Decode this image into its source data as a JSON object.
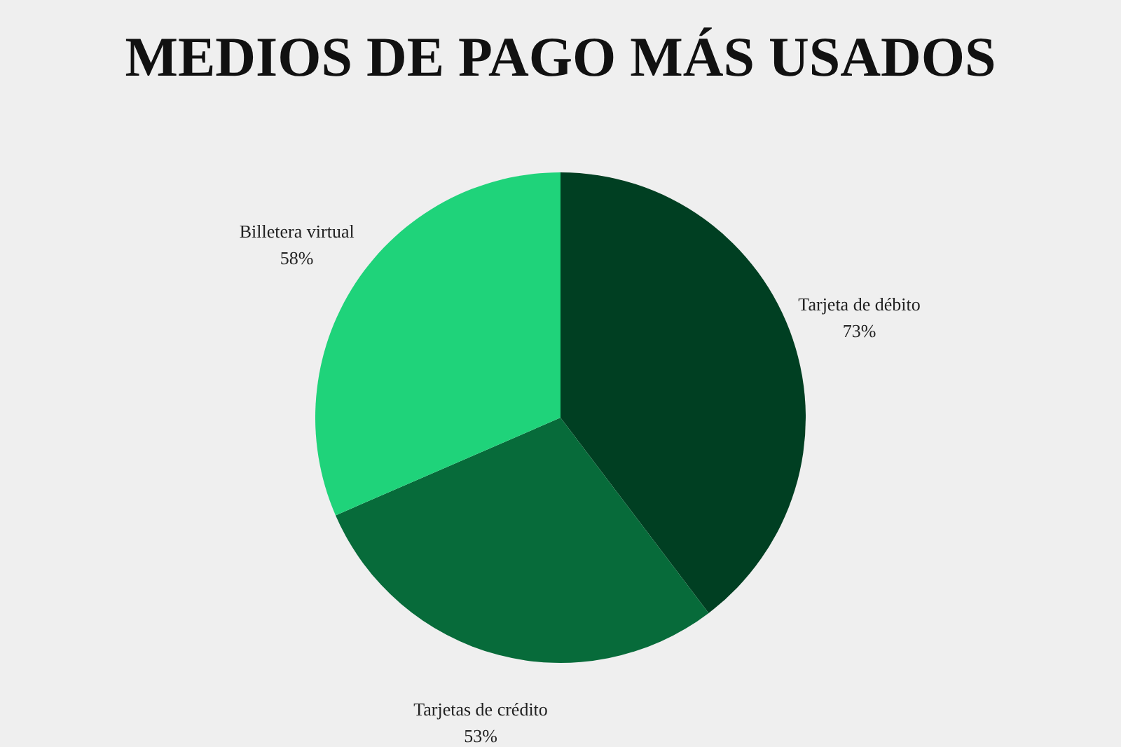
{
  "chart_data": {
    "type": "pie",
    "title": "MEDIOS DE PAGO MÁS USADOS",
    "categories": [
      "Tarjeta de débito",
      "Tarjetas de crédito",
      "Billetera virtual"
    ],
    "values": [
      73,
      53,
      58
    ],
    "value_labels": [
      "73%",
      "53%",
      "58%"
    ],
    "colors": [
      "#003f22",
      "#076b3a",
      "#1fd37a"
    ],
    "legend": false
  }
}
